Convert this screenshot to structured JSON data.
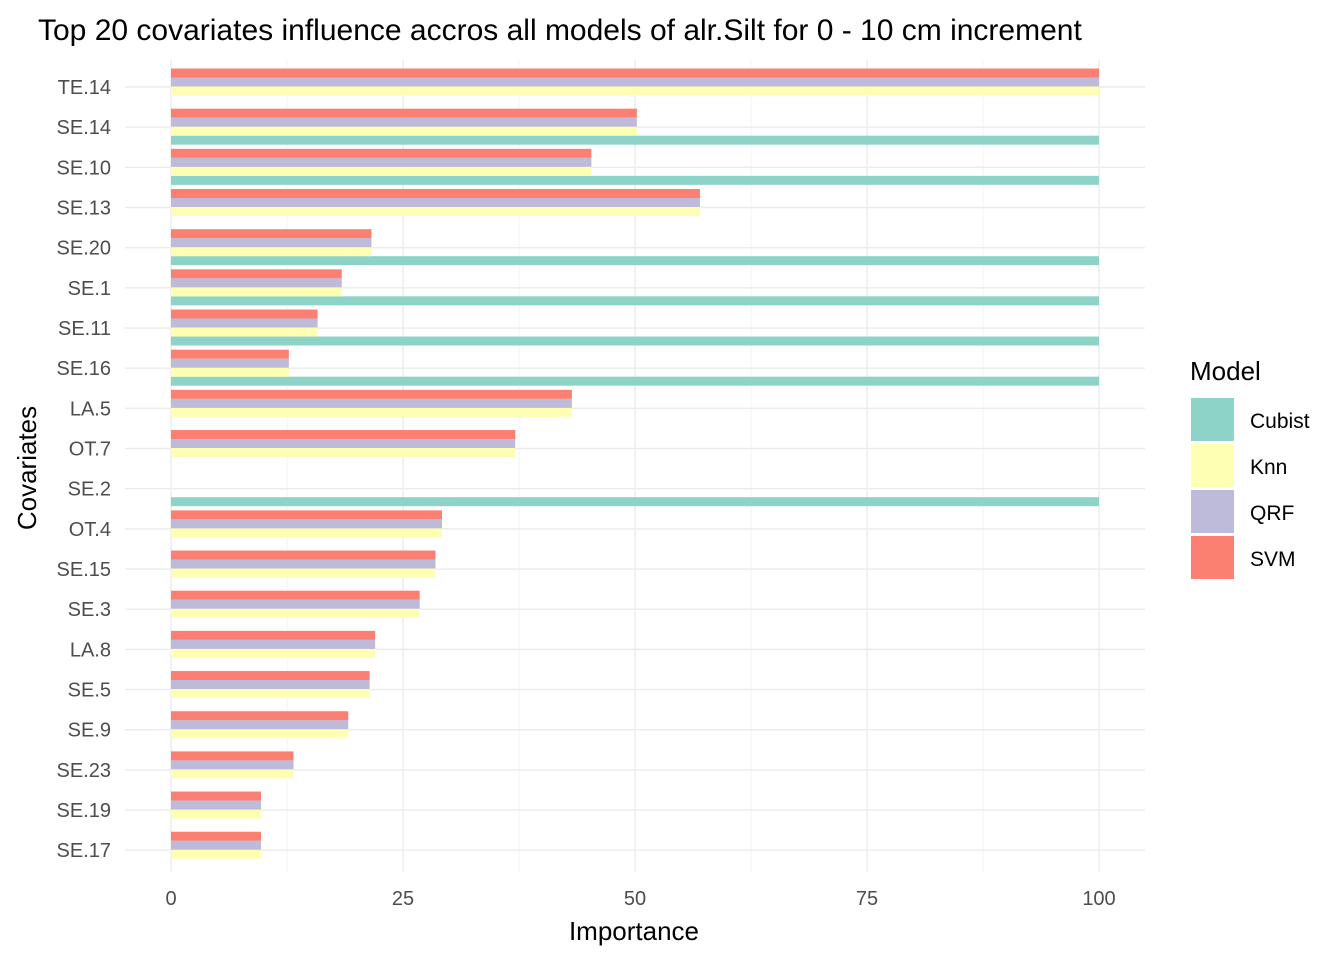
{
  "chart_data": {
    "type": "bar",
    "orientation": "horizontal",
    "title": "Top 20 covariates influence accros all models of alr.Silt for 0 - 10 cm increment",
    "xlabel": "Importance",
    "ylabel": "Covariates",
    "xlim": [
      0,
      105
    ],
    "xticks": [
      0,
      25,
      50,
      75,
      100
    ],
    "grid": true,
    "legend": {
      "title": "Model",
      "position": "right"
    },
    "categories": [
      "TE.14",
      "SE.14",
      "SE.10",
      "SE.13",
      "SE.20",
      "SE.1",
      "SE.11",
      "SE.16",
      "LA.5",
      "OT.7",
      "SE.2",
      "OT.4",
      "SE.15",
      "SE.3",
      "LA.8",
      "SE.5",
      "SE.9",
      "SE.23",
      "SE.19",
      "SE.17"
    ],
    "series": [
      {
        "name": "Cubist",
        "color": "#8DD3C7",
        "values": [
          null,
          100,
          100,
          null,
          100,
          100,
          100,
          100,
          null,
          null,
          100,
          null,
          null,
          null,
          null,
          null,
          null,
          null,
          null,
          null
        ]
      },
      {
        "name": "Knn",
        "color": "#FFFFB3",
        "values": [
          100,
          50.2,
          45.3,
          57.0,
          21.6,
          18.4,
          15.8,
          12.7,
          43.2,
          37.1,
          null,
          29.2,
          28.5,
          26.8,
          22.0,
          21.4,
          19.1,
          13.2,
          9.7,
          9.7
        ]
      },
      {
        "name": "QRF",
        "color": "#BEBADA",
        "values": [
          100,
          50.2,
          45.3,
          57.0,
          21.6,
          18.4,
          15.8,
          12.7,
          43.2,
          37.1,
          null,
          29.2,
          28.5,
          26.8,
          22.0,
          21.4,
          19.1,
          13.2,
          9.7,
          9.7
        ]
      },
      {
        "name": "SVM",
        "color": "#FB8072",
        "values": [
          100,
          50.2,
          45.3,
          57.0,
          21.6,
          18.4,
          15.8,
          12.7,
          43.2,
          37.1,
          null,
          29.2,
          28.5,
          26.8,
          22.0,
          21.4,
          19.1,
          13.2,
          9.7,
          9.7
        ]
      }
    ]
  }
}
